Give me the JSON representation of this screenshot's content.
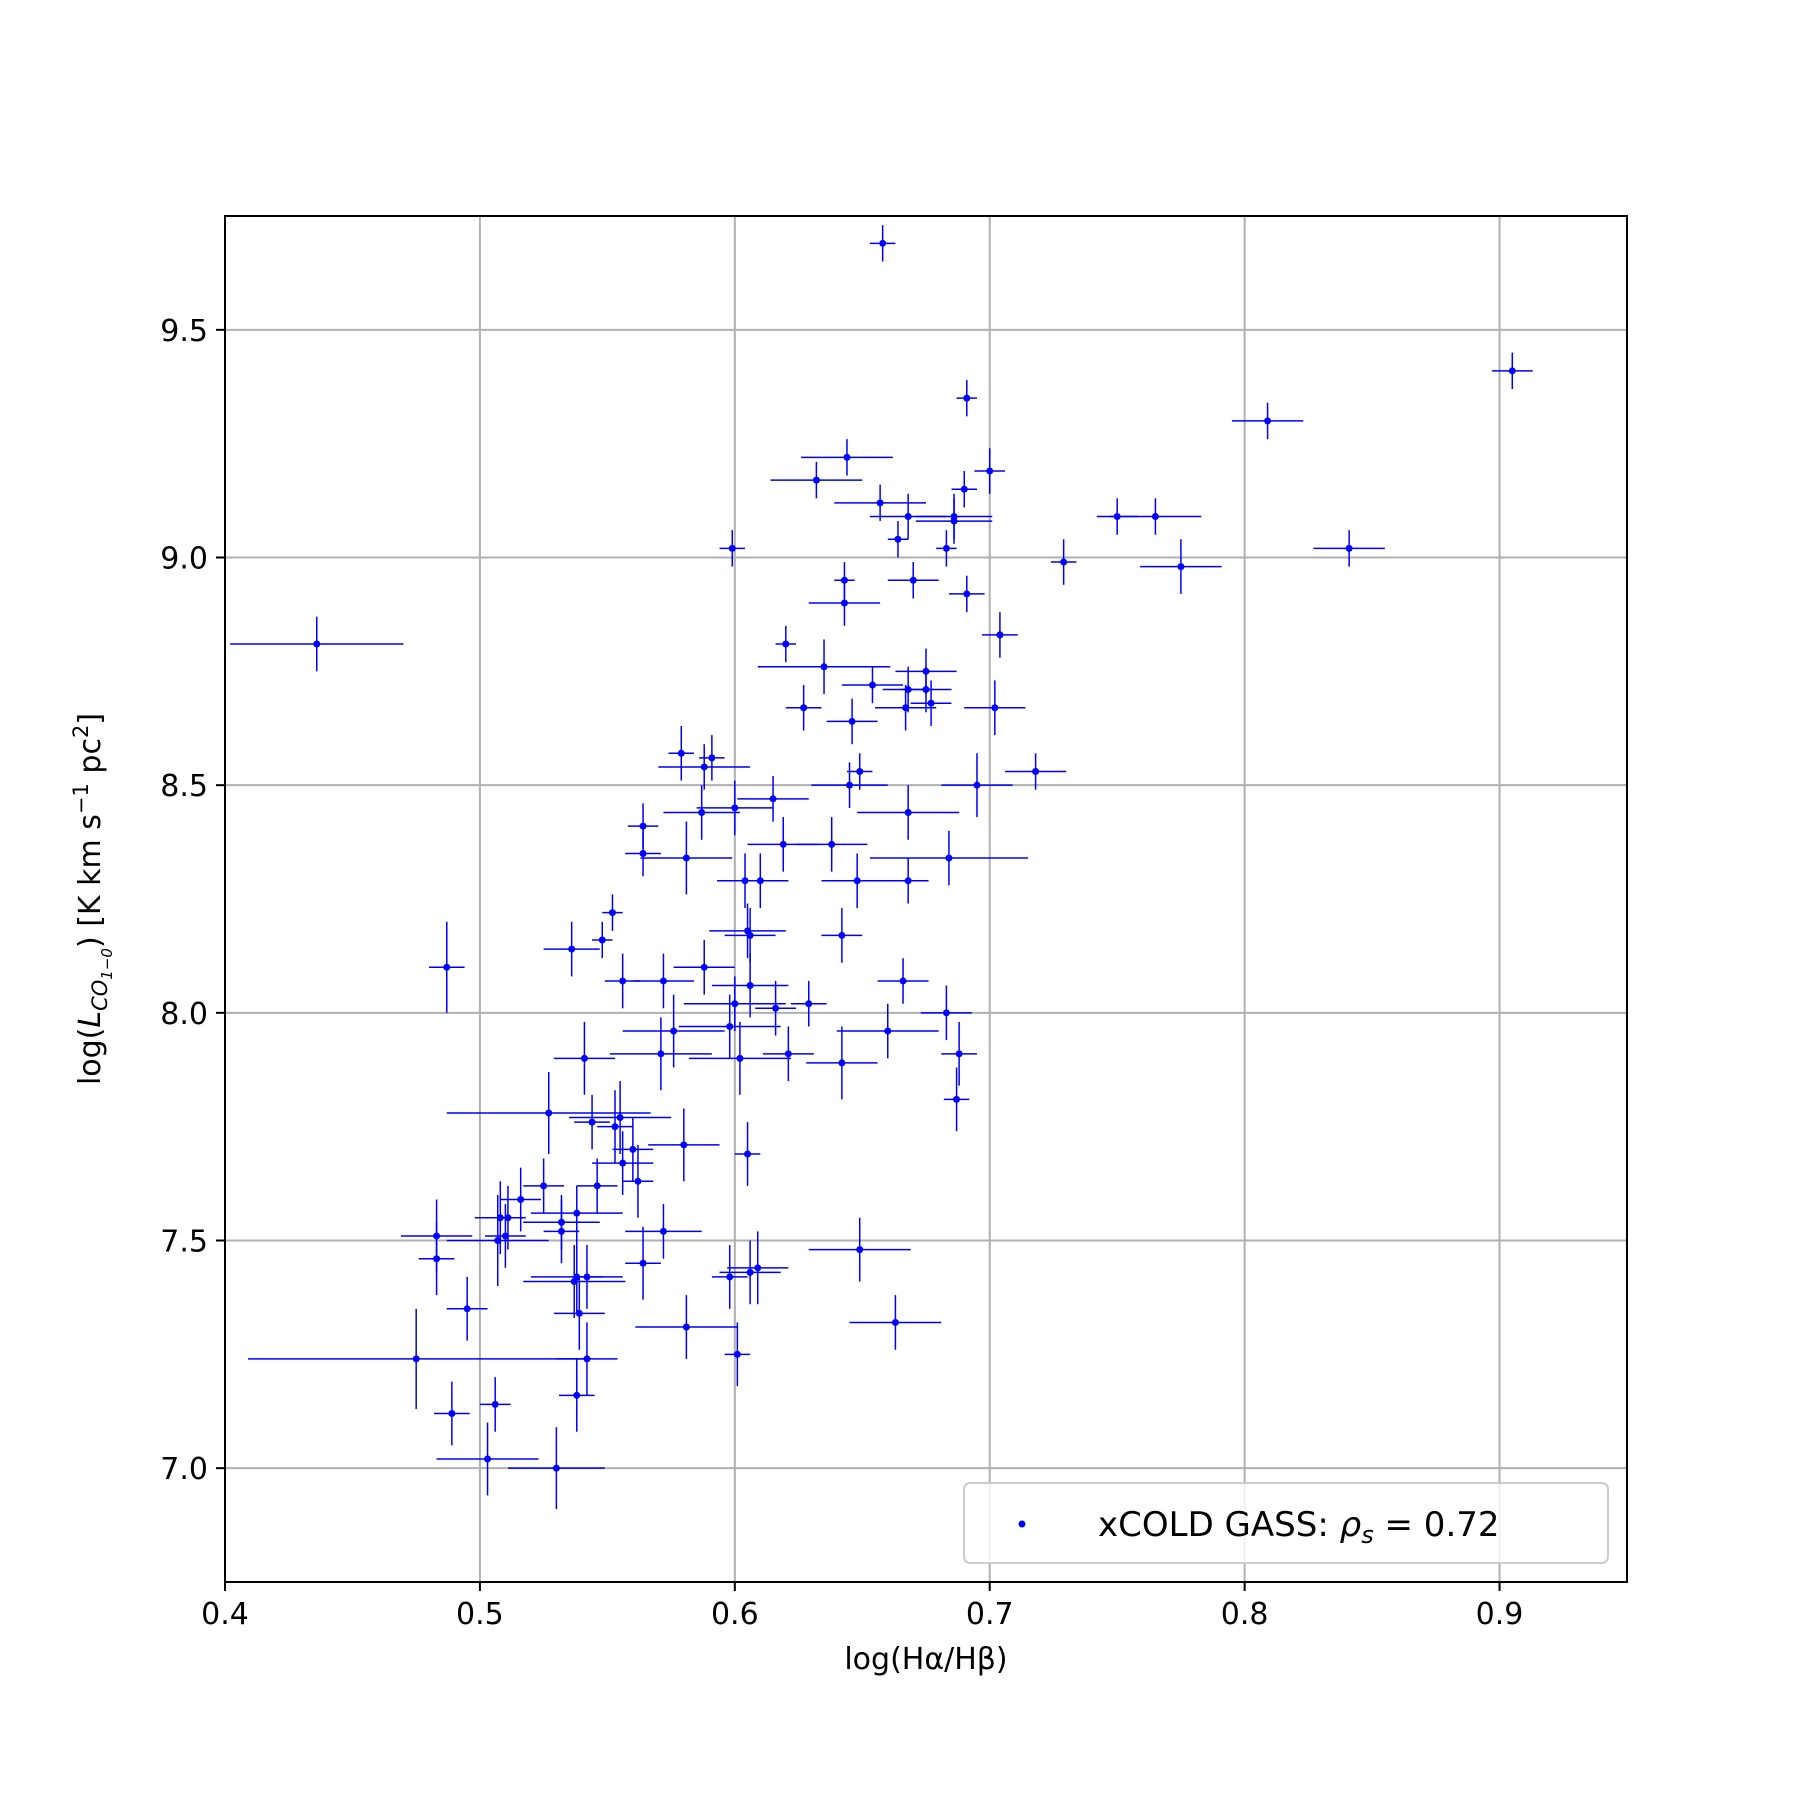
{
  "chart_data": {
    "type": "scatter",
    "xlabel": "log(Hα/Hβ)",
    "ylabel": {
      "prefix": "log(",
      "main": "L",
      "sub": "CO",
      "subsub": "1−0",
      "close": ")",
      "units_a": " [K km s",
      "units_exp": "−1",
      "units_b": " pc",
      "units_exp2": "2",
      "units_c": "]"
    },
    "xlim": [
      0.4,
      0.95
    ],
    "ylim": [
      6.75,
      9.75
    ],
    "xticks": [
      0.4,
      0.5,
      0.6,
      0.7,
      0.8,
      0.9
    ],
    "xtick_labels": [
      "0.4",
      "0.5",
      "0.6",
      "0.7",
      "0.8",
      "0.9"
    ],
    "yticks": [
      7.0,
      7.5,
      8.0,
      8.5,
      9.0,
      9.5
    ],
    "ytick_labels": [
      "7.0",
      "7.5",
      "8.0",
      "8.5",
      "9.0",
      "9.5"
    ],
    "grid": true,
    "legend_position": "bottom-right",
    "series": [
      {
        "name": "xCOLD GASS: ρs = 0.72",
        "legend": {
          "prefix": "xCOLD GASS: ",
          "rho": "ρ",
          "sub": "s",
          "suffix": " = 0.72"
        },
        "color": "#0000ff",
        "points": [
          [
            0.658,
            9.69,
            0.005,
            0.04
          ],
          [
            0.905,
            9.41,
            0.008,
            0.04
          ],
          [
            0.691,
            9.35,
            0.004,
            0.04
          ],
          [
            0.809,
            9.3,
            0.014,
            0.04
          ],
          [
            0.644,
            9.22,
            0.018,
            0.04
          ],
          [
            0.632,
            9.17,
            0.018,
            0.04
          ],
          [
            0.7,
            9.19,
            0.006,
            0.05
          ],
          [
            0.657,
            9.12,
            0.018,
            0.04
          ],
          [
            0.668,
            9.09,
            0.015,
            0.05
          ],
          [
            0.686,
            9.09,
            0.015,
            0.05
          ],
          [
            0.686,
            9.08,
            0.015,
            0.05
          ],
          [
            0.69,
            9.15,
            0.005,
            0.04
          ],
          [
            0.75,
            9.09,
            0.008,
            0.04
          ],
          [
            0.765,
            9.09,
            0.018,
            0.04
          ],
          [
            0.599,
            9.02,
            0.005,
            0.04
          ],
          [
            0.664,
            9.04,
            0.004,
            0.04
          ],
          [
            0.683,
            9.02,
            0.004,
            0.04
          ],
          [
            0.729,
            8.99,
            0.005,
            0.05
          ],
          [
            0.775,
            8.98,
            0.016,
            0.06
          ],
          [
            0.841,
            9.02,
            0.014,
            0.04
          ],
          [
            0.643,
            8.95,
            0.004,
            0.04
          ],
          [
            0.67,
            8.95,
            0.01,
            0.04
          ],
          [
            0.691,
            8.92,
            0.007,
            0.04
          ],
          [
            0.643,
            8.9,
            0.014,
            0.05
          ],
          [
            0.436,
            8.81,
            0.034,
            0.06
          ],
          [
            0.704,
            8.83,
            0.007,
            0.05
          ],
          [
            0.62,
            8.81,
            0.004,
            0.04
          ],
          [
            0.635,
            8.76,
            0.026,
            0.06
          ],
          [
            0.675,
            8.75,
            0.012,
            0.05
          ],
          [
            0.654,
            8.72,
            0.012,
            0.04
          ],
          [
            0.675,
            8.71,
            0.01,
            0.05
          ],
          [
            0.668,
            8.71,
            0.01,
            0.05
          ],
          [
            0.627,
            8.67,
            0.007,
            0.05
          ],
          [
            0.667,
            8.67,
            0.012,
            0.05
          ],
          [
            0.702,
            8.67,
            0.012,
            0.06
          ],
          [
            0.677,
            8.68,
            0.008,
            0.05
          ],
          [
            0.646,
            8.64,
            0.01,
            0.05
          ],
          [
            0.718,
            8.53,
            0.012,
            0.04
          ],
          [
            0.579,
            8.57,
            0.005,
            0.06
          ],
          [
            0.591,
            8.56,
            0.005,
            0.05
          ],
          [
            0.649,
            8.53,
            0.005,
            0.04
          ],
          [
            0.588,
            8.54,
            0.018,
            0.05
          ],
          [
            0.645,
            8.5,
            0.015,
            0.05
          ],
          [
            0.695,
            8.5,
            0.014,
            0.07
          ],
          [
            0.615,
            8.47,
            0.014,
            0.05
          ],
          [
            0.564,
            8.41,
            0.006,
            0.05
          ],
          [
            0.587,
            8.44,
            0.015,
            0.06
          ],
          [
            0.6,
            8.45,
            0.015,
            0.06
          ],
          [
            0.668,
            8.44,
            0.02,
            0.06
          ],
          [
            0.564,
            8.35,
            0.007,
            0.05
          ],
          [
            0.581,
            8.34,
            0.018,
            0.08
          ],
          [
            0.619,
            8.37,
            0.014,
            0.06
          ],
          [
            0.638,
            8.37,
            0.014,
            0.06
          ],
          [
            0.684,
            8.34,
            0.031,
            0.06
          ],
          [
            0.552,
            8.22,
            0.004,
            0.04
          ],
          [
            0.604,
            8.29,
            0.011,
            0.06
          ],
          [
            0.61,
            8.29,
            0.011,
            0.06
          ],
          [
            0.648,
            8.29,
            0.014,
            0.06
          ],
          [
            0.668,
            8.29,
            0.008,
            0.05
          ],
          [
            0.536,
            8.14,
            0.011,
            0.06
          ],
          [
            0.548,
            8.16,
            0.004,
            0.04
          ],
          [
            0.605,
            8.18,
            0.015,
            0.06
          ],
          [
            0.606,
            8.17,
            0.01,
            0.06
          ],
          [
            0.642,
            8.17,
            0.008,
            0.06
          ],
          [
            0.487,
            8.1,
            0.007,
            0.1
          ],
          [
            0.556,
            8.07,
            0.007,
            0.06
          ],
          [
            0.572,
            8.07,
            0.012,
            0.06
          ],
          [
            0.588,
            8.1,
            0.012,
            0.06
          ],
          [
            0.606,
            8.06,
            0.015,
            0.07
          ],
          [
            0.666,
            8.07,
            0.01,
            0.05
          ],
          [
            0.629,
            8.02,
            0.007,
            0.05
          ],
          [
            0.6,
            8.02,
            0.02,
            0.06
          ],
          [
            0.616,
            8.01,
            0.008,
            0.06
          ],
          [
            0.683,
            8.0,
            0.01,
            0.06
          ],
          [
            0.576,
            7.96,
            0.02,
            0.08
          ],
          [
            0.598,
            7.97,
            0.02,
            0.07
          ],
          [
            0.66,
            7.96,
            0.02,
            0.06
          ],
          [
            0.541,
            7.9,
            0.012,
            0.08
          ],
          [
            0.571,
            7.91,
            0.02,
            0.08
          ],
          [
            0.602,
            7.9,
            0.02,
            0.08
          ],
          [
            0.621,
            7.91,
            0.01,
            0.06
          ],
          [
            0.642,
            7.89,
            0.014,
            0.08
          ],
          [
            0.688,
            7.91,
            0.007,
            0.07
          ],
          [
            0.687,
            7.81,
            0.005,
            0.07
          ],
          [
            0.527,
            7.78,
            0.04,
            0.09
          ],
          [
            0.544,
            7.76,
            0.007,
            0.06
          ],
          [
            0.555,
            7.77,
            0.02,
            0.08
          ],
          [
            0.58,
            7.71,
            0.014,
            0.08
          ],
          [
            0.553,
            7.75,
            0.007,
            0.08
          ],
          [
            0.56,
            7.7,
            0.008,
            0.07
          ],
          [
            0.605,
            7.69,
            0.005,
            0.07
          ],
          [
            0.556,
            7.67,
            0.012,
            0.07
          ],
          [
            0.525,
            7.62,
            0.008,
            0.06
          ],
          [
            0.546,
            7.62,
            0.008,
            0.06
          ],
          [
            0.562,
            7.63,
            0.006,
            0.08
          ],
          [
            0.516,
            7.59,
            0.008,
            0.07
          ],
          [
            0.508,
            7.55,
            0.01,
            0.08
          ],
          [
            0.511,
            7.55,
            0.005,
            0.07
          ],
          [
            0.532,
            7.54,
            0.015,
            0.06
          ],
          [
            0.538,
            7.56,
            0.018,
            0.06
          ],
          [
            0.483,
            7.51,
            0.014,
            0.08
          ],
          [
            0.507,
            7.5,
            0.02,
            0.1
          ],
          [
            0.51,
            7.51,
            0.008,
            0.07
          ],
          [
            0.532,
            7.52,
            0.007,
            0.07
          ],
          [
            0.572,
            7.52,
            0.015,
            0.06
          ],
          [
            0.649,
            7.48,
            0.02,
            0.07
          ],
          [
            0.483,
            7.46,
            0.007,
            0.08
          ],
          [
            0.537,
            7.41,
            0.02,
            0.08
          ],
          [
            0.542,
            7.42,
            0.006,
            0.07
          ],
          [
            0.538,
            7.42,
            0.018,
            0.08
          ],
          [
            0.564,
            7.45,
            0.007,
            0.08
          ],
          [
            0.598,
            7.42,
            0.007,
            0.07
          ],
          [
            0.606,
            7.43,
            0.012,
            0.07
          ],
          [
            0.609,
            7.44,
            0.012,
            0.08
          ],
          [
            0.495,
            7.35,
            0.008,
            0.07
          ],
          [
            0.539,
            7.34,
            0.01,
            0.08
          ],
          [
            0.663,
            7.32,
            0.018,
            0.06
          ],
          [
            0.581,
            7.31,
            0.02,
            0.07
          ],
          [
            0.475,
            7.24,
            0.066,
            0.11
          ],
          [
            0.601,
            7.25,
            0.005,
            0.07
          ],
          [
            0.542,
            7.24,
            0.012,
            0.08
          ],
          [
            0.538,
            7.16,
            0.007,
            0.08
          ],
          [
            0.506,
            7.14,
            0.006,
            0.06
          ],
          [
            0.489,
            7.12,
            0.007,
            0.07
          ],
          [
            0.503,
            7.02,
            0.02,
            0.08
          ],
          [
            0.53,
            7.0,
            0.019,
            0.09
          ]
        ]
      }
    ]
  }
}
